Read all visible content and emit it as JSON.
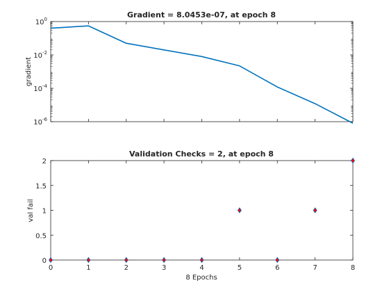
{
  "chart_data": [
    {
      "type": "line",
      "title": "Gradient = 8.0453e-07, at epoch 8",
      "xlabel": "",
      "ylabel": "gradient",
      "yscale": "log",
      "xlim": [
        0,
        8
      ],
      "ylim": [
        1e-06,
        1
      ],
      "xticks": [
        0,
        1,
        2,
        3,
        4,
        5,
        6,
        7,
        8
      ],
      "yticks": [
        {
          "base": "10",
          "exp": "0",
          "value": 1
        },
        {
          "base": "10",
          "exp": "-2",
          "value": 0.01
        },
        {
          "base": "10",
          "exp": "-4",
          "value": 0.0001
        },
        {
          "base": "10",
          "exp": "-6",
          "value": 1e-06
        }
      ],
      "grid": false,
      "series": [
        {
          "color": "#0072bd",
          "x": [
            0,
            1,
            2,
            3,
            4,
            5,
            6,
            7,
            8
          ],
          "y": [
            0.4,
            0.55,
            0.05,
            0.02,
            0.008,
            0.0022,
            0.00012,
            1.2e-05,
            8.0453e-07
          ]
        }
      ]
    },
    {
      "type": "scatter",
      "title": "Validation Checks = 2, at epoch 8",
      "xlabel": "8 Epochs",
      "ylabel": "val fail",
      "xlim": [
        0,
        8
      ],
      "ylim": [
        0,
        2
      ],
      "xticks": [
        0,
        1,
        2,
        3,
        4,
        5,
        6,
        7,
        8
      ],
      "yticks": [
        "0",
        "0.5",
        "1",
        "1.5",
        "2"
      ],
      "grid": false,
      "series": [
        {
          "color": "#0072bd",
          "marker_face": "#ff0000",
          "marker": "diamond",
          "x": [
            0,
            1,
            2,
            3,
            4,
            5,
            6,
            7,
            8
          ],
          "y": [
            0,
            0,
            0,
            0,
            0,
            1,
            0,
            1,
            2
          ]
        }
      ]
    }
  ]
}
